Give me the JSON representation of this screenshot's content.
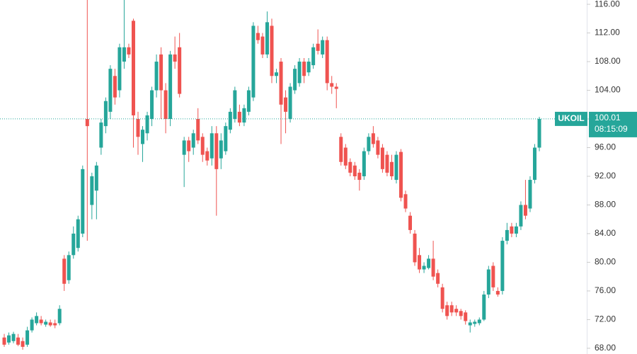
{
  "chart_data": {
    "type": "candlestick",
    "open": [
      69.5,
      68.8,
      69,
      69.5,
      69,
      68.5,
      70.5,
      71.5,
      72,
      71.3,
      71.6,
      71.5,
      71.5,
      80.5,
      77.5,
      81,
      82,
      84,
      100,
      88,
      90,
      96,
      99,
      101,
      106,
      104,
      108,
      110,
      113.7,
      100,
      96.5,
      98,
      100,
      104,
      109,
      104,
      100,
      109,
      110,
      95,
      97,
      96,
      100,
      97.5,
      95.5,
      94.5,
      98,
      94.5,
      95.5,
      98.5,
      100,
      101,
      99.5,
      101,
      103,
      112,
      111.5,
      109,
      113,
      106,
      108,
      103,
      100,
      104,
      105,
      108,
      106.5,
      107.5,
      110.5,
      109,
      111,
      105,
      104.5,
      97.5,
      96,
      94,
      93.5,
      92.5,
      92,
      95.5,
      98,
      97,
      96,
      95,
      94,
      91.5,
      95.4,
      89.5,
      86.5,
      84,
      81,
      79,
      79.2,
      80.5,
      78.5,
      76.5,
      74,
      74,
      73.5,
      73.2,
      73,
      71.2,
      71.4,
      71.5,
      72,
      75.5,
      79.5,
      76,
      76,
      83,
      85,
      84,
      85,
      88,
      87.5,
      91.5,
      96
    ],
    "high": [
      70,
      70.2,
      70.3,
      70,
      69.5,
      71,
      72.3,
      73,
      72.5,
      72,
      72,
      72,
      74,
      81,
      81.5,
      85,
      86.5,
      93.5,
      116.6,
      92.5,
      94,
      100,
      103,
      107.5,
      107,
      110.5,
      116.6,
      110.5,
      114,
      101,
      99,
      101,
      104.5,
      109,
      110,
      105,
      109.5,
      111.5,
      112,
      97.5,
      97.5,
      98.5,
      101.5,
      98,
      96,
      99,
      99,
      98,
      99.5,
      101.5,
      104.5,
      102,
      102,
      104.5,
      113.5,
      113,
      112,
      115,
      114,
      107,
      108.5,
      104,
      105,
      107.5,
      108.5,
      108.5,
      108.5,
      110.5,
      112.5,
      111.5,
      111.5,
      106,
      105,
      98,
      96.5,
      94.5,
      94,
      93,
      96,
      98,
      99,
      97.5,
      96.5,
      95.5,
      95,
      95.5,
      95.8,
      90,
      87,
      84.5,
      82,
      80,
      81,
      83,
      79,
      77,
      74.5,
      74.5,
      74,
      73.5,
      73.3,
      72,
      72,
      72.3,
      76,
      79.5,
      80,
      76.5,
      83.5,
      85.5,
      85.5,
      85.5,
      88.5,
      91.5,
      92,
      96.5,
      100.3
    ],
    "low": [
      68.2,
      68.5,
      68.7,
      68.3,
      67.8,
      68.2,
      70.2,
      71.2,
      71.2,
      71,
      71,
      70.8,
      71.2,
      76,
      77,
      80.5,
      81.5,
      83.5,
      83,
      86,
      86,
      95,
      98,
      100,
      102,
      103,
      107,
      108.5,
      96,
      95,
      94,
      97,
      99,
      103,
      100,
      98,
      99,
      107,
      103,
      90.5,
      94,
      95,
      96.5,
      94,
      93.5,
      93.5,
      86.5,
      93,
      95,
      98,
      99.5,
      99,
      99,
      100.5,
      102.5,
      110.5,
      108.5,
      108.5,
      105,
      105,
      96.5,
      98,
      99.5,
      103.5,
      104.5,
      105,
      106,
      107,
      109,
      108.5,
      104,
      103.5,
      101.5,
      93.5,
      93,
      92,
      91.5,
      90,
      91.5,
      95,
      96,
      94.5,
      92.5,
      92,
      91.5,
      91,
      88.5,
      87,
      84,
      79.5,
      78.5,
      78.5,
      79,
      77.5,
      76.5,
      73,
      72,
      72.5,
      72.5,
      72,
      71.3,
      70.2,
      71,
      71.2,
      71.8,
      75,
      76,
      75.2,
      75.5,
      82.5,
      83.5,
      83.5,
      84.5,
      86,
      87,
      91,
      95.5
    ],
    "close": [
      68.5,
      69.8,
      70,
      68.5,
      68.2,
      70.5,
      72,
      72.5,
      71.5,
      71.7,
      71.2,
      71.2,
      73.5,
      77,
      81,
      84,
      86,
      93,
      99,
      92,
      93.5,
      99.5,
      102.5,
      107,
      103,
      110,
      110,
      109,
      100.5,
      97.5,
      98.5,
      100.5,
      104,
      108,
      104,
      100,
      109,
      108,
      103.5,
      97,
      95.5,
      98,
      97,
      95,
      94.2,
      98,
      93,
      97,
      99,
      101,
      104,
      99.5,
      101.5,
      104,
      113,
      111,
      109,
      113.5,
      106,
      106.5,
      102,
      101,
      104.5,
      107,
      108,
      106,
      108,
      110,
      109.5,
      111,
      105,
      104.5,
      104.2,
      94,
      93.5,
      92.5,
      92,
      91.5,
      95.5,
      97.5,
      96.5,
      95,
      93,
      92.5,
      92,
      95,
      89,
      87.5,
      84.5,
      80,
      79,
      79.5,
      80.5,
      78,
      77,
      73.5,
      72.5,
      73,
      73,
      72.5,
      71.8,
      71.6,
      71.7,
      72,
      75.5,
      79,
      76.5,
      75.5,
      83,
      84.5,
      84,
      85,
      88,
      86.5,
      91.5,
      96,
      100.01
    ],
    "up_color": "#26a69a",
    "down_color": "#ef5350",
    "ylim": [
      67.2,
      116.6
    ],
    "yticks": [
      {
        "value": 68,
        "label": "68.00"
      },
      {
        "value": 72,
        "label": "72.00"
      },
      {
        "value": 76,
        "label": "76.00"
      },
      {
        "value": 80,
        "label": "80.00"
      },
      {
        "value": 84,
        "label": "84.00"
      },
      {
        "value": 88,
        "label": "88.00"
      },
      {
        "value": 92,
        "label": "92.00"
      },
      {
        "value": 96,
        "label": "96.00"
      },
      {
        "value": 100,
        "label": "100.00"
      },
      {
        "value": 104,
        "label": "104.00"
      },
      {
        "value": 108,
        "label": "108.00"
      },
      {
        "value": 112,
        "label": "112.00"
      },
      {
        "value": 116,
        "label": "116.00"
      }
    ],
    "price_tag": {
      "symbol": "UKOIL",
      "price": 100.01,
      "countdown": "08:15:09"
    }
  }
}
